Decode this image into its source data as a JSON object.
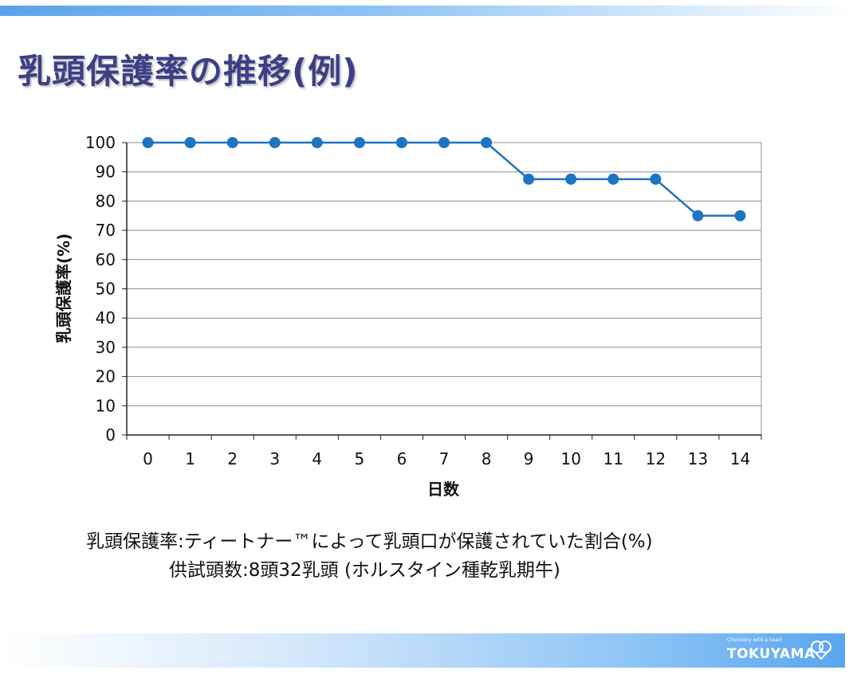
{
  "slide": {
    "title": "乳頭保護率の推移(例)",
    "note_line1": "乳頭保護率:ティートナー™によって乳頭口が保護されていた割合(%)",
    "note_line2": "供試頭数:8頭32乳頭 (ホルスタイン種乾乳期牛)"
  },
  "logo": {
    "tagline": "Chemistry with a heart",
    "name": "TOKUYAMA",
    "icon": "heart-double-circle-logo-icon"
  },
  "colors": {
    "title": "#3c3f85",
    "series": "#1f74c2",
    "gridline": "#8c8c8c",
    "band": "#5aa3ec"
  },
  "chart_data": {
    "type": "line",
    "title": "",
    "xlabel": "日数",
    "ylabel": "乳頭保護率(%)",
    "categories": [
      "0",
      "1",
      "2",
      "3",
      "4",
      "5",
      "6",
      "7",
      "8",
      "9",
      "10",
      "11",
      "12",
      "13",
      "14"
    ],
    "x": [
      0,
      1,
      2,
      3,
      4,
      5,
      6,
      7,
      8,
      9,
      10,
      11,
      12,
      13,
      14
    ],
    "series": [
      {
        "values": [
          100,
          100,
          100,
          100,
          100,
          100,
          100,
          100,
          100,
          87.5,
          87.5,
          87.5,
          87.5,
          75,
          75
        ]
      }
    ],
    "ylim": [
      0,
      100
    ],
    "yticks": [
      "0",
      "10",
      "20",
      "30",
      "40",
      "50",
      "60",
      "70",
      "80",
      "90",
      "100"
    ],
    "grid": true,
    "legend": "none"
  }
}
